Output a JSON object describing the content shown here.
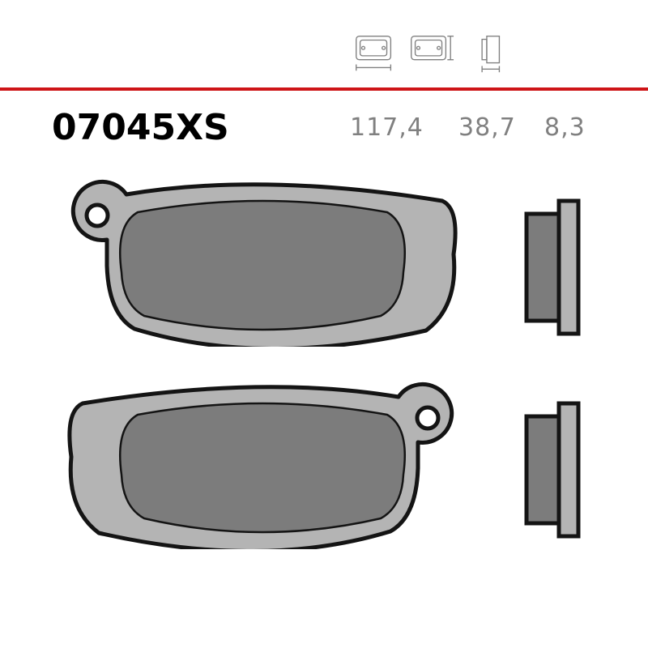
{
  "header": {
    "iconCount": 3,
    "iconStrokeColor": "#808080",
    "iconFillColor": "#ffffff",
    "iconStrokeWidth": 1.4,
    "iconsLeftPx": 432,
    "iconsTopPx": 38
  },
  "redRule": {
    "color": "#ce1417",
    "topPx": 108,
    "heightPx": 4
  },
  "partNumber": {
    "text": "07045XS",
    "fontSizePx": 44,
    "leftPx": 64,
    "topPx": 132,
    "color": "#000000"
  },
  "dimensions": {
    "width": {
      "value": "117,4",
      "leftPx": 432,
      "topPx": 140
    },
    "height": {
      "value": "38,7",
      "leftPx": 566,
      "topPx": 140
    },
    "thick": {
      "value": "8,3",
      "leftPx": 672,
      "topPx": 140
    },
    "fontSizePx": 30,
    "color": "#808080"
  },
  "pads": {
    "strokeColor": "#141414",
    "plateFillColor": "#b4b4b4",
    "frictionFillColor": "#7c7c7c",
    "strokeWidth": 5,
    "innerStrokeWidth": 2.5,
    "positions": {
      "pad1": {
        "leftPx": 74,
        "topPx": 218,
        "wPx": 500,
        "hPx": 210,
        "tabSide": "left"
      },
      "side1": {
        "leftPx": 640,
        "topPx": 244,
        "wPx": 82,
        "hPx": 172
      },
      "pad2": {
        "leftPx": 74,
        "topPx": 468,
        "wPx": 500,
        "hPx": 210,
        "tabSide": "right"
      },
      "side2": {
        "leftPx": 640,
        "topPx": 494,
        "wPx": 82,
        "hPx": 172
      }
    }
  }
}
